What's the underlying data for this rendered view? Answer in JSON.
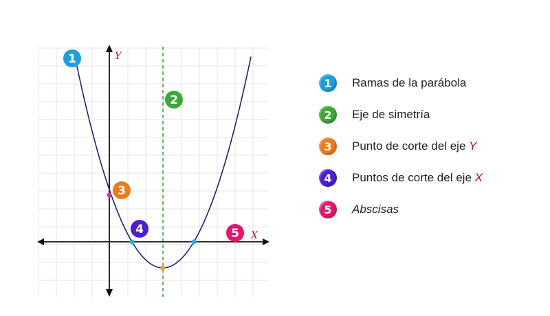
{
  "axes": {
    "x_label": "X",
    "y_label": "Y"
  },
  "colors": {
    "curve": "#1a237e",
    "axis": "#111111",
    "grid": "#e6e6e6",
    "symmetry": "#3aa935",
    "y_intercept_point": "#d63384",
    "x_intercept_points": "#1fb6d6",
    "vertex_point": "#f0a030",
    "highlight": "#d0021b"
  },
  "badges": [
    {
      "number": "1",
      "color": "#1a9fdf"
    },
    {
      "number": "2",
      "color": "#3aa935"
    },
    {
      "number": "3",
      "color": "#f07a1a"
    },
    {
      "number": "4",
      "color": "#4a1fd6"
    },
    {
      "number": "5",
      "color": "#e6176b"
    }
  ],
  "legend": [
    {
      "number": "1",
      "color": "#1a9fdf",
      "text": "Ramas de la parábola",
      "highlight": "",
      "italic": false
    },
    {
      "number": "2",
      "color": "#3aa935",
      "text": "Eje de simetría",
      "highlight": "",
      "italic": false
    },
    {
      "number": "3",
      "color": "#f07a1a",
      "text": "Punto de corte del eje ",
      "highlight": "Y",
      "italic": false
    },
    {
      "number": "4",
      "color": "#4a1fd6",
      "text": "Puntos de corte del eje ",
      "highlight": "X",
      "italic": false
    },
    {
      "number": "5",
      "color": "#e6176b",
      "text": "Abscisas",
      "highlight": "",
      "italic": true
    }
  ]
}
